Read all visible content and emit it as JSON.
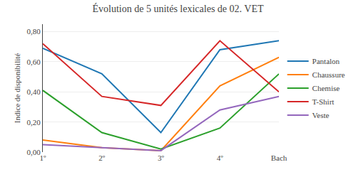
{
  "chart_data": {
    "type": "line",
    "title": "Évolution de 5 unités lexicales de 02. VET",
    "ylabel": "Indice de disponibilité",
    "categories": [
      "1º",
      "2º",
      "3º",
      "4º",
      "Bach"
    ],
    "series": [
      {
        "name": "Pantalon",
        "values": [
          0.69,
          0.52,
          0.13,
          0.68,
          0.74
        ]
      },
      {
        "name": "Chaussure",
        "values": [
          0.08,
          0.03,
          0.01,
          0.44,
          0.63
        ]
      },
      {
        "name": "Chemise",
        "values": [
          0.41,
          0.13,
          0.02,
          0.16,
          0.52
        ]
      },
      {
        "name": "T-Shirt",
        "values": [
          0.72,
          0.37,
          0.31,
          0.74,
          0.4
        ]
      },
      {
        "name": "Veste",
        "values": [
          0.05,
          0.03,
          0.01,
          0.28,
          0.37
        ]
      }
    ],
    "ylim": [
      0.0,
      0.85
    ],
    "yticks": [
      {
        "value": 0.0,
        "label": "0,00"
      },
      {
        "value": 0.2,
        "label": "0,20"
      },
      {
        "value": 0.4,
        "label": "0,40"
      },
      {
        "value": 0.6,
        "label": "0,60"
      },
      {
        "value": 0.8,
        "label": "0,80"
      }
    ],
    "grid": "y",
    "legend": "right"
  }
}
